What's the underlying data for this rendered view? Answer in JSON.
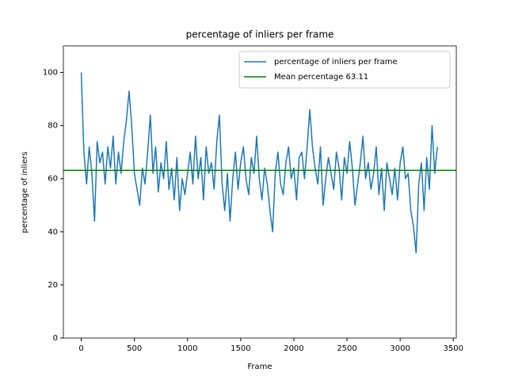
{
  "chart_data": {
    "type": "line",
    "title": "percentage of inliers per frame",
    "x_label": "Frame",
    "y_label": "percentage of inliers",
    "x": [
      0,
      25,
      50,
      75,
      100,
      125,
      150,
      175,
      200,
      225,
      250,
      275,
      300,
      325,
      350,
      375,
      400,
      425,
      450,
      475,
      500,
      525,
      550,
      575,
      600,
      625,
      650,
      675,
      700,
      725,
      750,
      775,
      800,
      825,
      850,
      875,
      900,
      925,
      950,
      975,
      1000,
      1025,
      1050,
      1075,
      1100,
      1125,
      1150,
      1175,
      1200,
      1225,
      1250,
      1275,
      1300,
      1325,
      1350,
      1375,
      1400,
      1425,
      1450,
      1475,
      1500,
      1525,
      1550,
      1575,
      1600,
      1625,
      1650,
      1675,
      1700,
      1725,
      1750,
      1775,
      1800,
      1825,
      1850,
      1875,
      1900,
      1925,
      1950,
      1975,
      2000,
      2025,
      2050,
      2075,
      2100,
      2125,
      2150,
      2175,
      2200,
      2225,
      2250,
      2275,
      2300,
      2325,
      2350,
      2375,
      2400,
      2425,
      2450,
      2475,
      2500,
      2525,
      2550,
      2575,
      2600,
      2625,
      2650,
      2675,
      2700,
      2725,
      2750,
      2775,
      2800,
      2825,
      2850,
      2875,
      2900,
      2925,
      2950,
      2975,
      3000,
      3025,
      3050,
      3075,
      3100,
      3125,
      3150,
      3175,
      3200,
      3225,
      3250,
      3275,
      3300,
      3325,
      3350
    ],
    "series": [
      {
        "name": "percentage of inliers per frame",
        "color": "#1f77b4",
        "values": [
          100,
          70,
          58,
          72,
          62,
          44,
          74,
          66,
          70,
          58,
          72,
          64,
          76,
          58,
          70,
          62,
          74,
          82,
          93,
          80,
          62,
          56,
          50,
          64,
          58,
          70,
          84,
          62,
          72,
          55,
          66,
          60,
          74,
          56,
          64,
          52,
          68,
          48,
          60,
          54,
          62,
          70,
          58,
          76,
          60,
          68,
          52,
          72,
          62,
          66,
          56,
          74,
          84,
          58,
          48,
          62,
          44,
          60,
          70,
          56,
          66,
          72,
          60,
          54,
          68,
          62,
          76,
          60,
          52,
          64,
          58,
          48,
          40,
          62,
          70,
          58,
          54,
          66,
          72,
          60,
          64,
          52,
          68,
          70,
          60,
          72,
          86,
          72,
          64,
          58,
          72,
          50,
          60,
          68,
          62,
          56,
          70,
          64,
          52,
          68,
          62,
          74,
          64,
          50,
          58,
          66,
          76,
          60,
          66,
          56,
          62,
          72,
          54,
          64,
          48,
          66,
          60,
          54,
          64,
          52,
          66,
          72,
          60,
          62,
          48,
          42,
          32,
          58,
          66,
          48,
          68,
          56,
          80,
          62,
          72
        ]
      }
    ],
    "mean": {
      "label": "Mean percentage 63.11",
      "value": 63.11,
      "color": "#008000"
    },
    "xlim": [
      -168,
      3528
    ],
    "ylim": [
      0,
      110
    ],
    "xticks": [
      0,
      500,
      1000,
      1500,
      2000,
      2500,
      3000,
      3500
    ],
    "yticks": [
      0,
      20,
      40,
      60,
      80,
      100
    ],
    "legend": "upper right"
  }
}
